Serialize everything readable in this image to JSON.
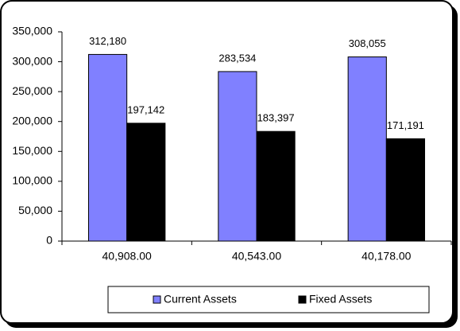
{
  "chart_data": {
    "type": "bar",
    "categories": [
      "40,908.00",
      "40,543.00",
      "40,178.00"
    ],
    "series": [
      {
        "name": "Current Assets",
        "color": "#8080ff",
        "values": [
          312180,
          283534,
          308055
        ],
        "value_labels": [
          "312,180",
          "283,534",
          "308,055"
        ]
      },
      {
        "name": "Fixed Assets",
        "color": "#000000",
        "values": [
          197142,
          183397,
          171191
        ],
        "value_labels": [
          "197,142",
          "183,397",
          "171,191"
        ]
      }
    ],
    "ylim": [
      0,
      350000
    ],
    "yticks": [
      {
        "value": 0,
        "label": "0"
      },
      {
        "value": 50000,
        "label": "50,000"
      },
      {
        "value": 100000,
        "label": "100,000"
      },
      {
        "value": 150000,
        "label": "150,000"
      },
      {
        "value": 200000,
        "label": "200,000"
      },
      {
        "value": 250000,
        "label": "250,000"
      },
      {
        "value": 300000,
        "label": "300,000"
      },
      {
        "value": 350000,
        "label": "350,000"
      }
    ],
    "grid": false,
    "legend": "bottom"
  }
}
